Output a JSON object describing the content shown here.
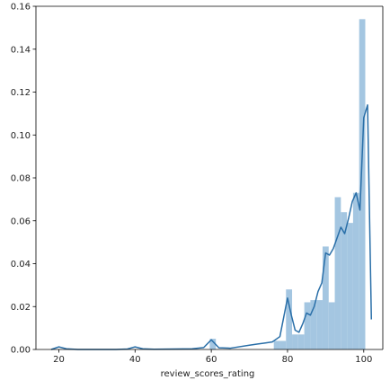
{
  "chart_data": {
    "type": "bar",
    "subtype": "histogram-with-kde",
    "title": "",
    "xlabel": "review_scores_rating",
    "ylabel": "",
    "xlim": [
      14,
      105
    ],
    "ylim": [
      0,
      0.16
    ],
    "xticks": [
      20,
      40,
      60,
      80,
      100
    ],
    "yticks": [
      0.0,
      0.02,
      0.04,
      0.06,
      0.08,
      0.1,
      0.12,
      0.14,
      0.16
    ],
    "xtick_labels": [
      "20",
      "40",
      "60",
      "80",
      "100"
    ],
    "ytick_labels": [
      "0.00",
      "0.02",
      "0.04",
      "0.06",
      "0.08",
      "0.10",
      "0.12",
      "0.14",
      "0.16"
    ],
    "grid": false,
    "legend": "none",
    "bins": [
      {
        "x0": 59.6,
        "x1": 61.2,
        "value": 0.005
      },
      {
        "x0": 76.4,
        "x1": 78.0,
        "value": 0.004
      },
      {
        "x0": 78.0,
        "x1": 79.6,
        "value": 0.004
      },
      {
        "x0": 79.6,
        "x1": 81.2,
        "value": 0.028
      },
      {
        "x0": 81.2,
        "x1": 82.8,
        "value": 0.007
      },
      {
        "x0": 82.8,
        "x1": 84.4,
        "value": 0.007
      },
      {
        "x0": 84.4,
        "x1": 86.0,
        "value": 0.022
      },
      {
        "x0": 86.0,
        "x1": 87.6,
        "value": 0.023
      },
      {
        "x0": 87.6,
        "x1": 89.2,
        "value": 0.023
      },
      {
        "x0": 89.2,
        "x1": 90.8,
        "value": 0.048
      },
      {
        "x0": 90.8,
        "x1": 92.4,
        "value": 0.022
      },
      {
        "x0": 92.4,
        "x1": 94.0,
        "value": 0.071
      },
      {
        "x0": 94.0,
        "x1": 95.6,
        "value": 0.064
      },
      {
        "x0": 95.6,
        "x1": 97.2,
        "value": 0.059
      },
      {
        "x0": 97.2,
        "x1": 98.8,
        "value": 0.073
      },
      {
        "x0": 98.8,
        "x1": 100.4,
        "value": 0.154
      }
    ],
    "kde": {
      "x": [
        18,
        20,
        22,
        25,
        30,
        35,
        38,
        40,
        42,
        45,
        50,
        55,
        58,
        60,
        62,
        65,
        70,
        72,
        74,
        76,
        78,
        79,
        80,
        81,
        82,
        83,
        84,
        85,
        86,
        87,
        88,
        89,
        90,
        91,
        92,
        93,
        94,
        95,
        96,
        97,
        98,
        99,
        100,
        101,
        102
      ],
      "y": [
        0.0,
        0.0012,
        0.0003,
        0.0,
        0.0,
        0.0,
        0.0002,
        0.0012,
        0.0003,
        0.0001,
        0.0002,
        0.0003,
        0.0009,
        0.0045,
        0.0008,
        0.0006,
        0.002,
        0.0025,
        0.003,
        0.0035,
        0.006,
        0.015,
        0.024,
        0.016,
        0.009,
        0.008,
        0.012,
        0.017,
        0.016,
        0.02,
        0.027,
        0.031,
        0.045,
        0.044,
        0.047,
        0.052,
        0.057,
        0.054,
        0.061,
        0.069,
        0.073,
        0.065,
        0.108,
        0.114,
        0.014
      ]
    },
    "colors": {
      "bars": "#a4c6e1",
      "line": "#2a6fa8",
      "axes": "#000000"
    }
  }
}
